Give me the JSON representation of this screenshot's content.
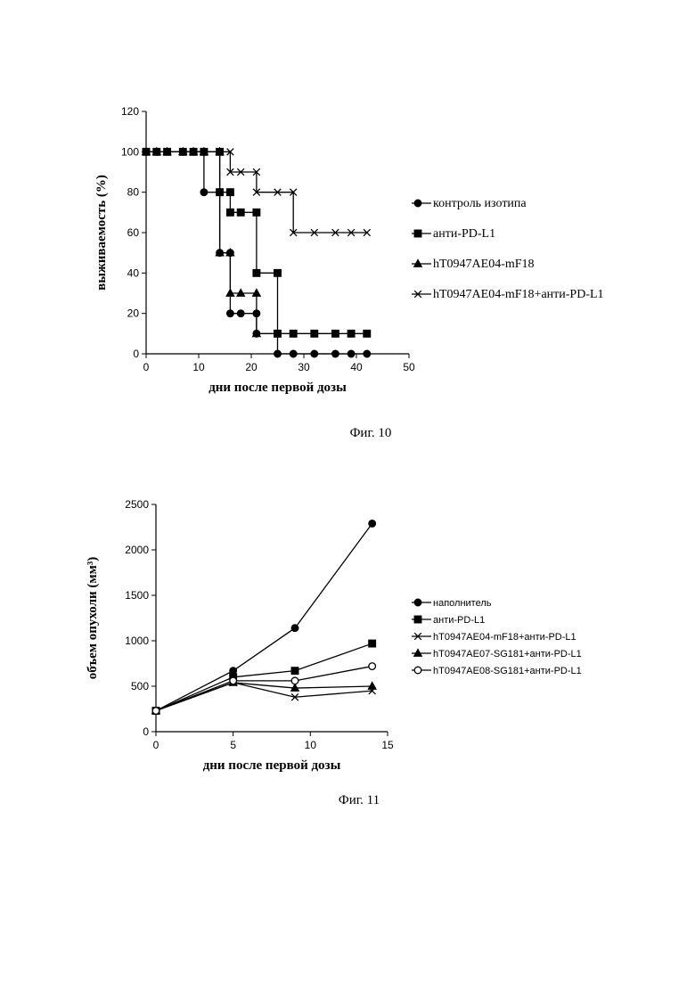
{
  "chart_data": [
    {
      "type": "line",
      "step": true,
      "caption": "Фиг. 10",
      "title": "",
      "xlabel": "дни после первой дозы",
      "ylabel": "выживаемость (%)",
      "xlim": [
        0,
        50
      ],
      "ylim": [
        0,
        120
      ],
      "xticks": [
        "0",
        "10",
        "20",
        "30",
        "40",
        "50"
      ],
      "yticks": [
        "0",
        "20",
        "40",
        "60",
        "80",
        "100",
        "120"
      ],
      "grid": false,
      "legend_position": "right",
      "series": [
        {
          "name": "контроль изотипа",
          "marker": "circle-filled",
          "points": [
            [
              0,
              100
            ],
            [
              2,
              100
            ],
            [
              4,
              100
            ],
            [
              7,
              100
            ],
            [
              9,
              100
            ],
            [
              11,
              100
            ],
            [
              11,
              80
            ],
            [
              14,
              80
            ],
            [
              14,
              50
            ],
            [
              16,
              50
            ],
            [
              16,
              20
            ],
            [
              18,
              20
            ],
            [
              21,
              20
            ],
            [
              21,
              10
            ],
            [
              25,
              10
            ],
            [
              25,
              0
            ],
            [
              28,
              0
            ],
            [
              32,
              0
            ],
            [
              36,
              0
            ],
            [
              39,
              0
            ],
            [
              42,
              0
            ]
          ]
        },
        {
          "name": "анти-PD-L1",
          "marker": "square-filled",
          "points": [
            [
              0,
              100
            ],
            [
              2,
              100
            ],
            [
              4,
              100
            ],
            [
              7,
              100
            ],
            [
              9,
              100
            ],
            [
              11,
              100
            ],
            [
              14,
              100
            ],
            [
              14,
              80
            ],
            [
              16,
              80
            ],
            [
              16,
              70
            ],
            [
              18,
              70
            ],
            [
              21,
              70
            ],
            [
              21,
              40
            ],
            [
              25,
              40
            ],
            [
              25,
              10
            ],
            [
              28,
              10
            ],
            [
              32,
              10
            ],
            [
              36,
              10
            ],
            [
              39,
              10
            ],
            [
              42,
              10
            ]
          ]
        },
        {
          "name": "hT0947AE04-mF18",
          "marker": "triangle-filled",
          "points": [
            [
              0,
              100
            ],
            [
              2,
              100
            ],
            [
              4,
              100
            ],
            [
              7,
              100
            ],
            [
              9,
              100
            ],
            [
              11,
              100
            ],
            [
              14,
              100
            ],
            [
              14,
              50
            ],
            [
              16,
              50
            ],
            [
              16,
              30
            ],
            [
              18,
              30
            ],
            [
              21,
              30
            ],
            [
              21,
              10
            ]
          ]
        },
        {
          "name": "hT0947AE04-mF18+анти-PD-L1",
          "marker": "x",
          "points": [
            [
              0,
              100
            ],
            [
              2,
              100
            ],
            [
              4,
              100
            ],
            [
              7,
              100
            ],
            [
              9,
              100
            ],
            [
              11,
              100
            ],
            [
              14,
              100
            ],
            [
              16,
              100
            ],
            [
              16,
              90
            ],
            [
              18,
              90
            ],
            [
              21,
              90
            ],
            [
              21,
              80
            ],
            [
              25,
              80
            ],
            [
              28,
              80
            ],
            [
              28,
              60
            ],
            [
              32,
              60
            ],
            [
              36,
              60
            ],
            [
              39,
              60
            ],
            [
              42,
              60
            ]
          ]
        }
      ]
    },
    {
      "type": "line",
      "step": false,
      "caption": "Фиг. 11",
      "title": "",
      "xlabel": "дни после первой дозы",
      "ylabel": "объем опухоли (мм³)",
      "xlim": [
        0,
        15
      ],
      "ylim": [
        0,
        2500
      ],
      "xticks": [
        "0",
        "5",
        "10",
        "15"
      ],
      "yticks": [
        "0",
        "500",
        "1000",
        "1500",
        "2000",
        "2500"
      ],
      "grid": false,
      "legend_position": "right",
      "series": [
        {
          "name": "наполнитель",
          "marker": "circle-filled",
          "points": [
            [
              0,
              230
            ],
            [
              5,
              670
            ],
            [
              9,
              1140
            ],
            [
              14,
              2290
            ]
          ]
        },
        {
          "name": "анти-PD-L1",
          "marker": "square-filled",
          "points": [
            [
              0,
              230
            ],
            [
              5,
              600
            ],
            [
              9,
              670
            ],
            [
              14,
              970
            ]
          ]
        },
        {
          "name": "hT0947AE04-mF18+анти-PD-L1",
          "marker": "x",
          "points": [
            [
              0,
              230
            ],
            [
              5,
              540
            ],
            [
              9,
              380
            ],
            [
              14,
              450
            ]
          ]
        },
        {
          "name": "hT0947AE07-SG181+анти-PD-L1",
          "marker": "triangle-filled",
          "points": [
            [
              0,
              230
            ],
            [
              5,
              540
            ],
            [
              9,
              480
            ],
            [
              14,
              500
            ]
          ]
        },
        {
          "name": "hT0947AE08-SG181+анти-PD-L1",
          "marker": "circle-open",
          "points": [
            [
              0,
              230
            ],
            [
              5,
              560
            ],
            [
              9,
              560
            ],
            [
              14,
              720
            ]
          ]
        }
      ]
    }
  ]
}
